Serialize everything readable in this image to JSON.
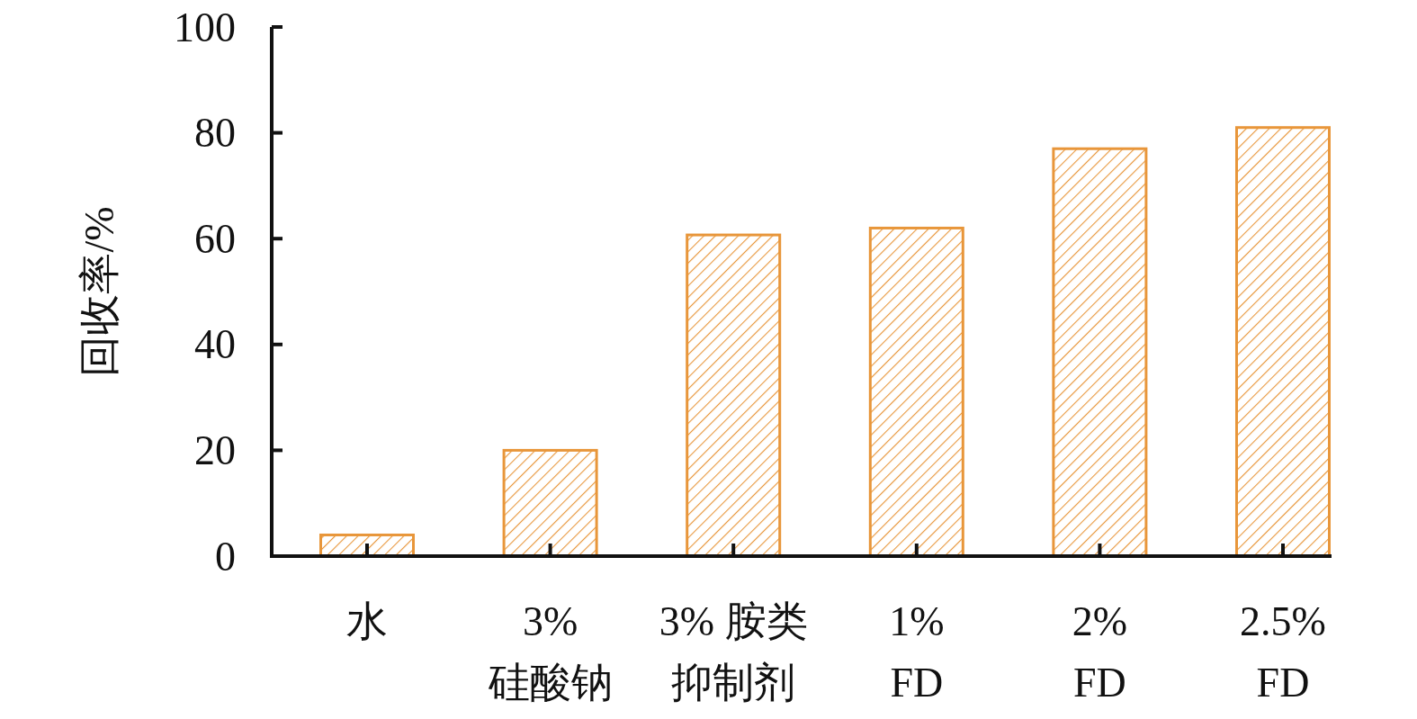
{
  "chart_data": {
    "type": "bar",
    "ylabel": "回收率/%",
    "categories": [
      "水",
      "3%\n硅酸钠",
      "3% 胺类抑制剂",
      "1%\nFD",
      "2%\nFD",
      "2.5%\nFD"
    ],
    "values": [
      4,
      20,
      60.7,
      62,
      77,
      81
    ],
    "color": "#e8963a",
    "ylim": [
      0,
      100
    ],
    "yticks": [
      0,
      20,
      40,
      60,
      80,
      100
    ]
  }
}
